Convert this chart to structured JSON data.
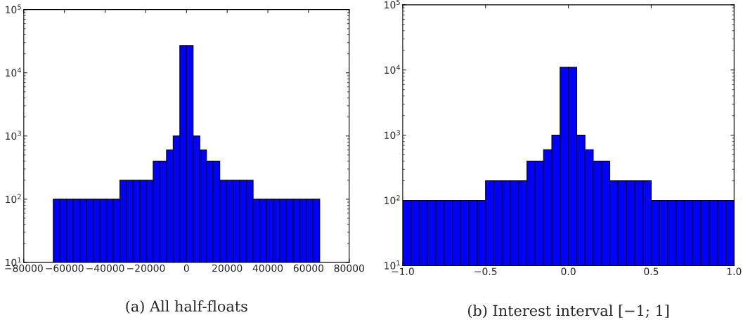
{
  "chart_data": [
    {
      "type": "histogram",
      "title": "(a) All half-floats",
      "bins": [
        -65504,
        -62228.8,
        -58953.6,
        -55678.4,
        -52403.2,
        -49128,
        -45852.8,
        -42577.6,
        -39302.4,
        -36027.2,
        -32752,
        -29476.8,
        -26201.6,
        -22926.4,
        -19651.2,
        -16376,
        -13100.8,
        -9825.6,
        -6550.4,
        -3275.2,
        0,
        3275.2,
        6550.4,
        9825.6,
        13100.8,
        16376,
        19651.2,
        22926.4,
        26201.6,
        29476.8,
        32752,
        36027.2,
        39302.4,
        42577.6,
        45852.8,
        49128,
        52403.2,
        55678.4,
        58953.6,
        62228.8,
        65504
      ],
      "values": [
        100,
        100,
        100,
        100,
        100,
        100,
        100,
        100,
        100,
        100,
        200,
        200,
        200,
        200,
        200,
        400,
        400,
        600,
        1000,
        27000,
        27000,
        1000,
        600,
        400,
        400,
        200,
        200,
        200,
        200,
        200,
        100,
        100,
        100,
        100,
        100,
        100,
        100,
        100,
        100,
        100
      ],
      "color": "#0000ff",
      "log": "y",
      "grid": false,
      "xlim": [
        -80000,
        80000
      ],
      "xticks": [
        {
          "value": -80000,
          "label": "−80000"
        },
        {
          "value": -60000,
          "label": "−60000"
        },
        {
          "value": -40000,
          "label": "−40000"
        },
        {
          "value": -20000,
          "label": "−20000"
        },
        0,
        20000,
        40000,
        60000,
        80000
      ],
      "ylim": [
        10,
        100000
      ],
      "yticks": [
        {
          "value": 10,
          "label": "10$^{1}$"
        },
        {
          "value": 100,
          "label": "10$^{2}$"
        },
        {
          "value": 1000,
          "label": "10$^{3}$"
        },
        {
          "value": 10000,
          "label": "10$^{4}$"
        },
        {
          "value": 100000,
          "label": "10$^{5}$"
        }
      ]
    },
    {
      "type": "histogram",
      "title": "(b) Interest interval [−1; 1]",
      "bins": [
        -1.0,
        -0.95,
        -0.9,
        -0.85,
        -0.8,
        -0.75,
        -0.7,
        -0.65,
        -0.6,
        -0.55,
        -0.5,
        -0.45,
        -0.4,
        -0.35,
        -0.3,
        -0.25,
        -0.2,
        -0.15,
        -0.1,
        -0.05,
        0.0,
        0.05,
        0.1,
        0.15,
        0.2,
        0.25,
        0.3,
        0.35,
        0.4,
        0.45,
        0.5,
        0.55,
        0.6,
        0.65,
        0.7,
        0.75,
        0.8,
        0.85,
        0.9,
        0.95,
        1.0
      ],
      "values": [
        100,
        100,
        100,
        100,
        100,
        100,
        100,
        100,
        100,
        100,
        200,
        200,
        200,
        200,
        200,
        400,
        400,
        600,
        1000,
        11000,
        11000,
        1000,
        600,
        400,
        400,
        200,
        200,
        200,
        200,
        200,
        100,
        100,
        100,
        100,
        100,
        100,
        100,
        100,
        100,
        100
      ],
      "color": "#0000ff",
      "log": "y",
      "grid": false,
      "xlim": [
        -1.0,
        1.0
      ],
      "xticks": [
        {
          "value": -1.0,
          "label": "−1.0"
        },
        {
          "value": -0.5,
          "label": "−0.5"
        },
        {
          "value": 0.0,
          "label": "0.0"
        },
        {
          "value": 0.5,
          "label": "0.5"
        },
        {
          "value": 1.0,
          "label": "1.0"
        }
      ],
      "ylim": [
        10,
        100000
      ],
      "yticks": [
        {
          "value": 10,
          "label": "10$^{1}$"
        },
        {
          "value": 100,
          "label": "10$^{2}$"
        },
        {
          "value": 1000,
          "label": "10$^{3}$"
        },
        {
          "value": 10000,
          "label": "10$^{4}$"
        },
        {
          "value": 100000,
          "label": "10$^{5}$"
        }
      ]
    }
  ]
}
